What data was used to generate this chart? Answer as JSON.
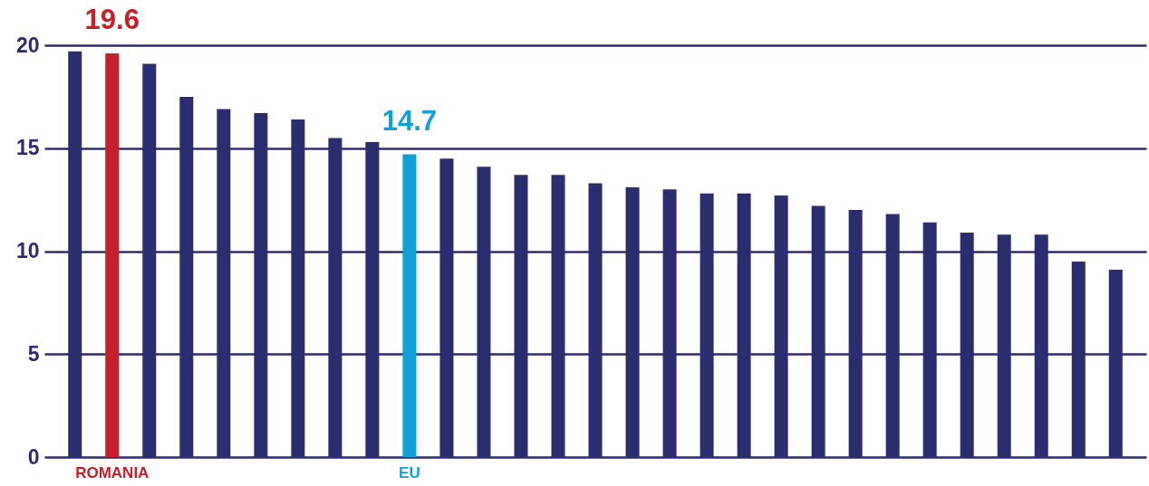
{
  "chart_data": {
    "type": "bar",
    "categories": [
      null,
      "ROMANIA",
      null,
      null,
      null,
      null,
      null,
      null,
      null,
      "EU",
      null,
      null,
      null,
      null,
      null,
      null,
      null,
      null,
      null,
      null,
      null,
      null,
      null,
      null,
      null,
      null,
      null,
      null,
      null
    ],
    "values": [
      19.7,
      19.6,
      19.1,
      17.5,
      16.9,
      16.7,
      16.4,
      15.5,
      15.3,
      14.7,
      14.5,
      14.1,
      13.7,
      13.7,
      13.3,
      13.1,
      13.0,
      12.8,
      12.8,
      12.7,
      12.2,
      12.0,
      11.8,
      11.4,
      10.9,
      10.8,
      10.8,
      9.5,
      9.1
    ],
    "colors": [
      "#2b2d6e",
      "#c6202a",
      "#2b2d6e",
      "#2b2d6e",
      "#2b2d6e",
      "#2b2d6e",
      "#2b2d6e",
      "#2b2d6e",
      "#2b2d6e",
      "#0f9fd9",
      "#2b2d6e",
      "#2b2d6e",
      "#2b2d6e",
      "#2b2d6e",
      "#2b2d6e",
      "#2b2d6e",
      "#2b2d6e",
      "#2b2d6e",
      "#2b2d6e",
      "#2b2d6e",
      "#2b2d6e",
      "#2b2d6e",
      "#2b2d6e",
      "#2b2d6e",
      "#2b2d6e",
      "#2b2d6e",
      "#2b2d6e",
      "#2b2d6e",
      "#2b2d6e"
    ],
    "value_labels": [
      null,
      "19.6",
      null,
      null,
      null,
      null,
      null,
      null,
      null,
      "14.7",
      null,
      null,
      null,
      null,
      null,
      null,
      null,
      null,
      null,
      null,
      null,
      null,
      null,
      null,
      null,
      null,
      null,
      null,
      null
    ],
    "ylim": [
      0,
      20
    ],
    "yticks": [
      0,
      5,
      10,
      15,
      20
    ],
    "grid": "y"
  }
}
